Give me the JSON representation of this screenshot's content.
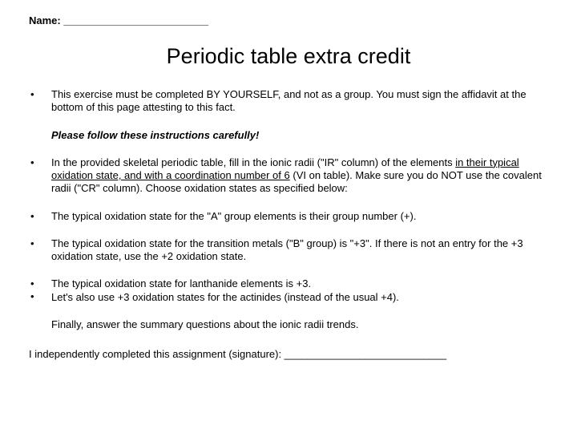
{
  "header": {
    "name_label": "Name: _________________________"
  },
  "title": "Periodic table extra credit",
  "bullets": {
    "b1": "This exercise must be completed BY YOURSELF, and not as a group.  You must sign the affidavit at the bottom of this page attesting to this fact.",
    "instructions_emph": "Please follow these instructions carefully!",
    "b2_pre": "In the provided skeletal periodic table, fill in the ionic radii (\"IR\" column) of the elements ",
    "b2_u": "in their typical oxidation state, and with a coordination number of 6",
    "b2_post": " (VI on table). Make sure you do NOT use the covalent radii (\"CR\" column).  Choose oxidation states as specified below:",
    "b3": "The typical oxidation state for the \"A\" group elements is their group number (+).",
    "b4": "The typical oxidation state for the transition metals (\"B\" group) is \"+3\". If there is not an entry for the +3 oxidation state, use the +2 oxidation state.",
    "b5a": "The typical oxidation state for lanthanide elements is +3.",
    "b5b": "Let's also use +3 oxidation states for the actinides (instead of the usual +4).",
    "final": "Finally, answer the summary questions about the ionic radii trends."
  },
  "signature": "I independently completed this assignment (signature): ____________________________"
}
